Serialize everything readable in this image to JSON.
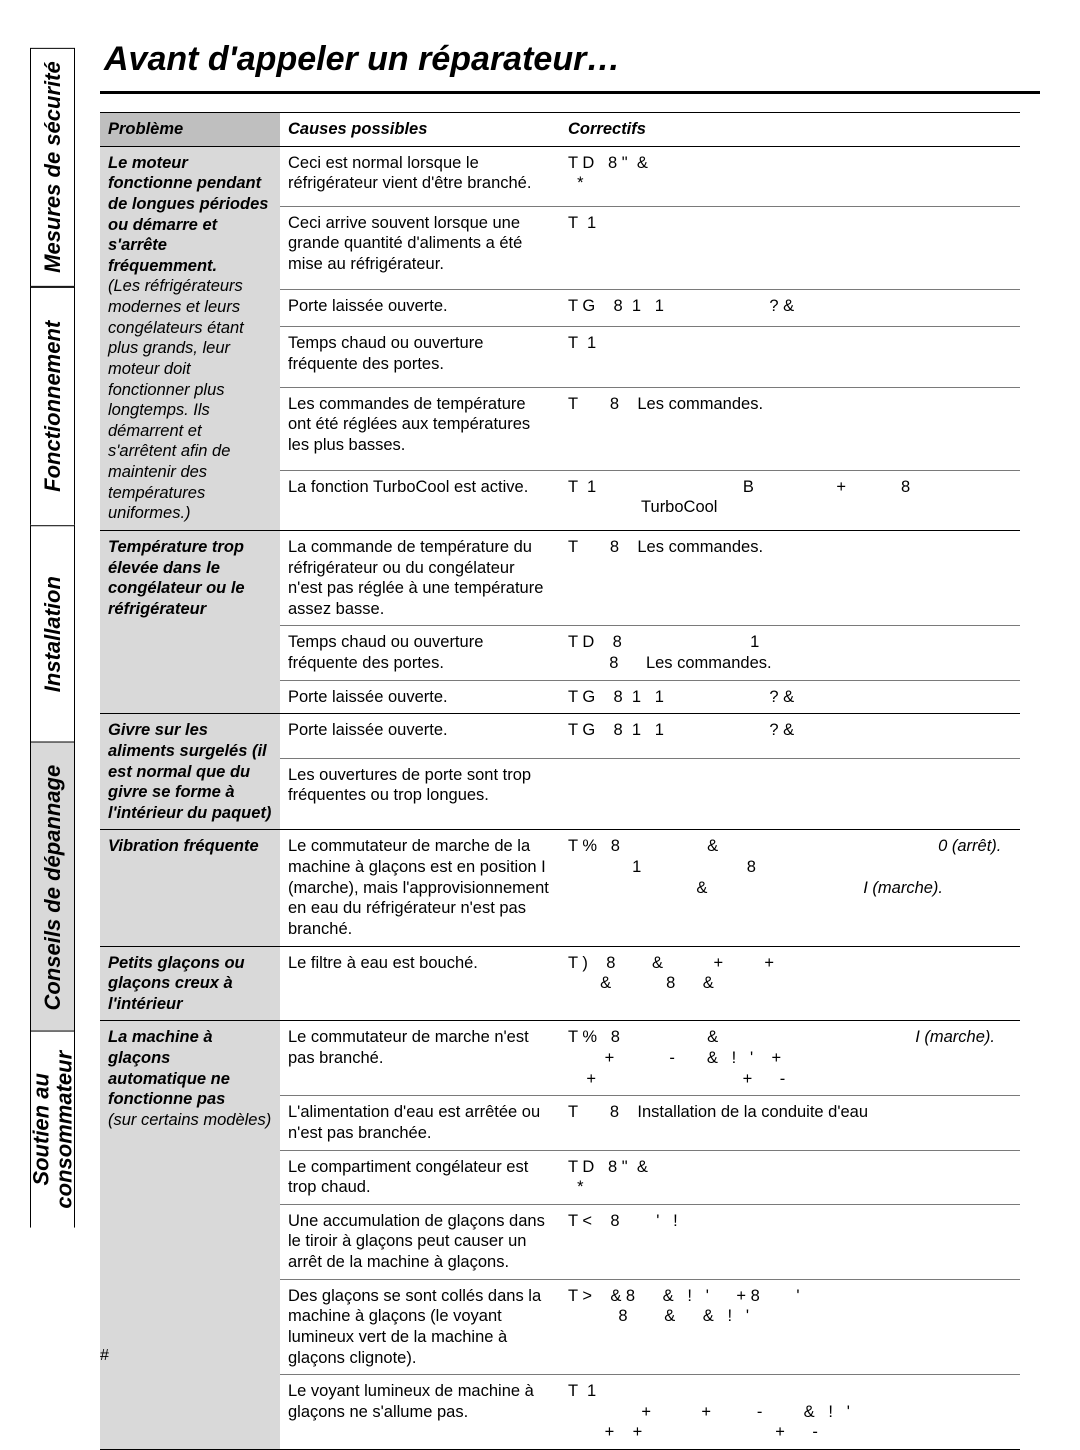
{
  "title": "Avant d'appeler un réparateur…",
  "page_number": "#",
  "sidebar": [
    {
      "label": "Mesures de sécurité",
      "active": false,
      "flex": 2.1
    },
    {
      "label": "Fonctionnement",
      "active": false,
      "flex": 2.1
    },
    {
      "label": "Installation",
      "active": false,
      "flex": 1.9
    },
    {
      "label": "Conseils de dépannage",
      "active": true,
      "flex": 2.6
    },
    {
      "label": "Soutien au\nconsommateur",
      "active": false,
      "flex": 1.7
    }
  ],
  "headers": {
    "problem": "Problème",
    "cause": "Causes possibles",
    "fix": "Correctifs"
  },
  "groups": [
    {
      "problem": "Le moteur fonctionne pendant de longues périodes ou démarre et s'arrête fréquemment.",
      "problem_note": "(Les réfrigérateurs modernes et leurs congélateurs étant plus grands, leur moteur doit fonctionner plus longtemps. Ils démarrent et s'arrêtent afin de maintenir des températures uniformes.)",
      "rows": [
        {
          "cause": "Ceci est normal lorsque le réfrigérateur vient d'être branché.",
          "fix": "T D   8 \"  &\n  *"
        },
        {
          "cause": "Ceci arrive souvent lorsque une grande quantité d'aliments a été mise au réfrigérateur.",
          "fix": "T  1"
        },
        {
          "cause": "Porte laissée ouverte.",
          "fix": "T G    8  1   1                       ? &"
        },
        {
          "cause": "Temps chaud ou ouverture fréquente des portes.",
          "fix": "T  1"
        },
        {
          "cause": "Les commandes de température ont été réglées aux températures les plus basses.",
          "fix": "T       8    Les commandes."
        },
        {
          "cause": "La fonction TurboCool est active.",
          "fix": "T  1                                B                  +            8\n                TurboCool"
        }
      ]
    },
    {
      "problem": "Température trop élevée dans le congélateur ou le réfrigérateur",
      "rows": [
        {
          "cause": "La commande de température du réfrigérateur ou du congélateur n'est pas réglée à une température assez basse.",
          "fix": "T       8    Les commandes."
        },
        {
          "cause": "Temps chaud ou ouverture fréquente des portes.",
          "fix": "T D    8                            1\n         8      Les commandes."
        },
        {
          "cause": "Porte laissée ouverte.",
          "fix": "T G    8  1   1                       ? &"
        }
      ]
    },
    {
      "problem": "Givre sur les aliments surgelés (il est normal que du givre se forme à l'intérieur du paquet)",
      "rows": [
        {
          "cause": "Porte laissée ouverte.",
          "fix": "T G    8  1   1                       ? &"
        },
        {
          "cause": "Les ouvertures de porte sont trop fréquentes ou trop longues.",
          "fix": ""
        }
      ]
    },
    {
      "problem": "Vibration fréquente",
      "rows": [
        {
          "cause": "Le commutateur de marche de la machine à glaçons est en position I (marche), mais l'approvisionnement en eau du réfrigérateur n'est pas branché.",
          "fix": "T %   8                   &                                                0 (arrêt).\n              1                       8\n                            &                                  I (marche)."
        }
      ]
    },
    {
      "problem": "Petits glaçons ou glaçons creux à l'intérieur",
      "rows": [
        {
          "cause": "Le filtre à eau est bouché.",
          "fix": "T )    8        &           +         +\n       &            8      &"
        }
      ]
    },
    {
      "problem": "La machine à glaçons automatique ne fonctionne pas",
      "problem_note": "(sur certains modèles)",
      "rows": [
        {
          "cause": "Le commutateur de marche n'est pas branché.",
          "fix": "T %   8                   &                                           I (marche).\n        +            -       &   !   '    +\n    +                                +      -"
        },
        {
          "cause": "L'alimentation d'eau est arrêtée ou n'est pas branchée.",
          "fix": "T       8    Installation de la conduite d'eau"
        },
        {
          "cause": "Le compartiment congélateur est trop chaud.",
          "fix": "T D   8 \"  &\n  *"
        },
        {
          "cause": "Une accumulation de glaçons dans le tiroir à glaçons peut causer un arrêt de la machine à glaçons.",
          "fix": "T <    8        '   !"
        },
        {
          "cause": "Des glaçons se sont collés dans la machine à glaçons (le voyant lumineux vert de la machine à glaçons clignote).",
          "fix": "T >    & 8      &   !   '      + 8        '\n           8        &      &   !   '"
        },
        {
          "cause": "Le voyant lumineux de machine à glaçons ne s'allume pas.",
          "fix": "T  1\n                +           +          -         &   !   '\n        +    +                             +      -"
        }
      ]
    }
  ]
}
